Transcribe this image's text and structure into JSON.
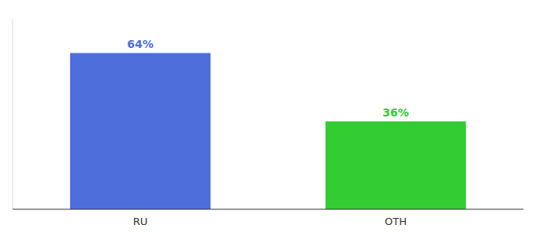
{
  "chart_data": {
    "type": "bar",
    "categories": [
      "RU",
      "OTH"
    ],
    "values": [
      64,
      36
    ],
    "value_labels": [
      "64%",
      "36%"
    ],
    "colors": [
      "#4d6edb",
      "#33cc33"
    ],
    "ylim": [
      0,
      78
    ],
    "data_labels": true,
    "tick_labels": "x",
    "grid": false
  }
}
